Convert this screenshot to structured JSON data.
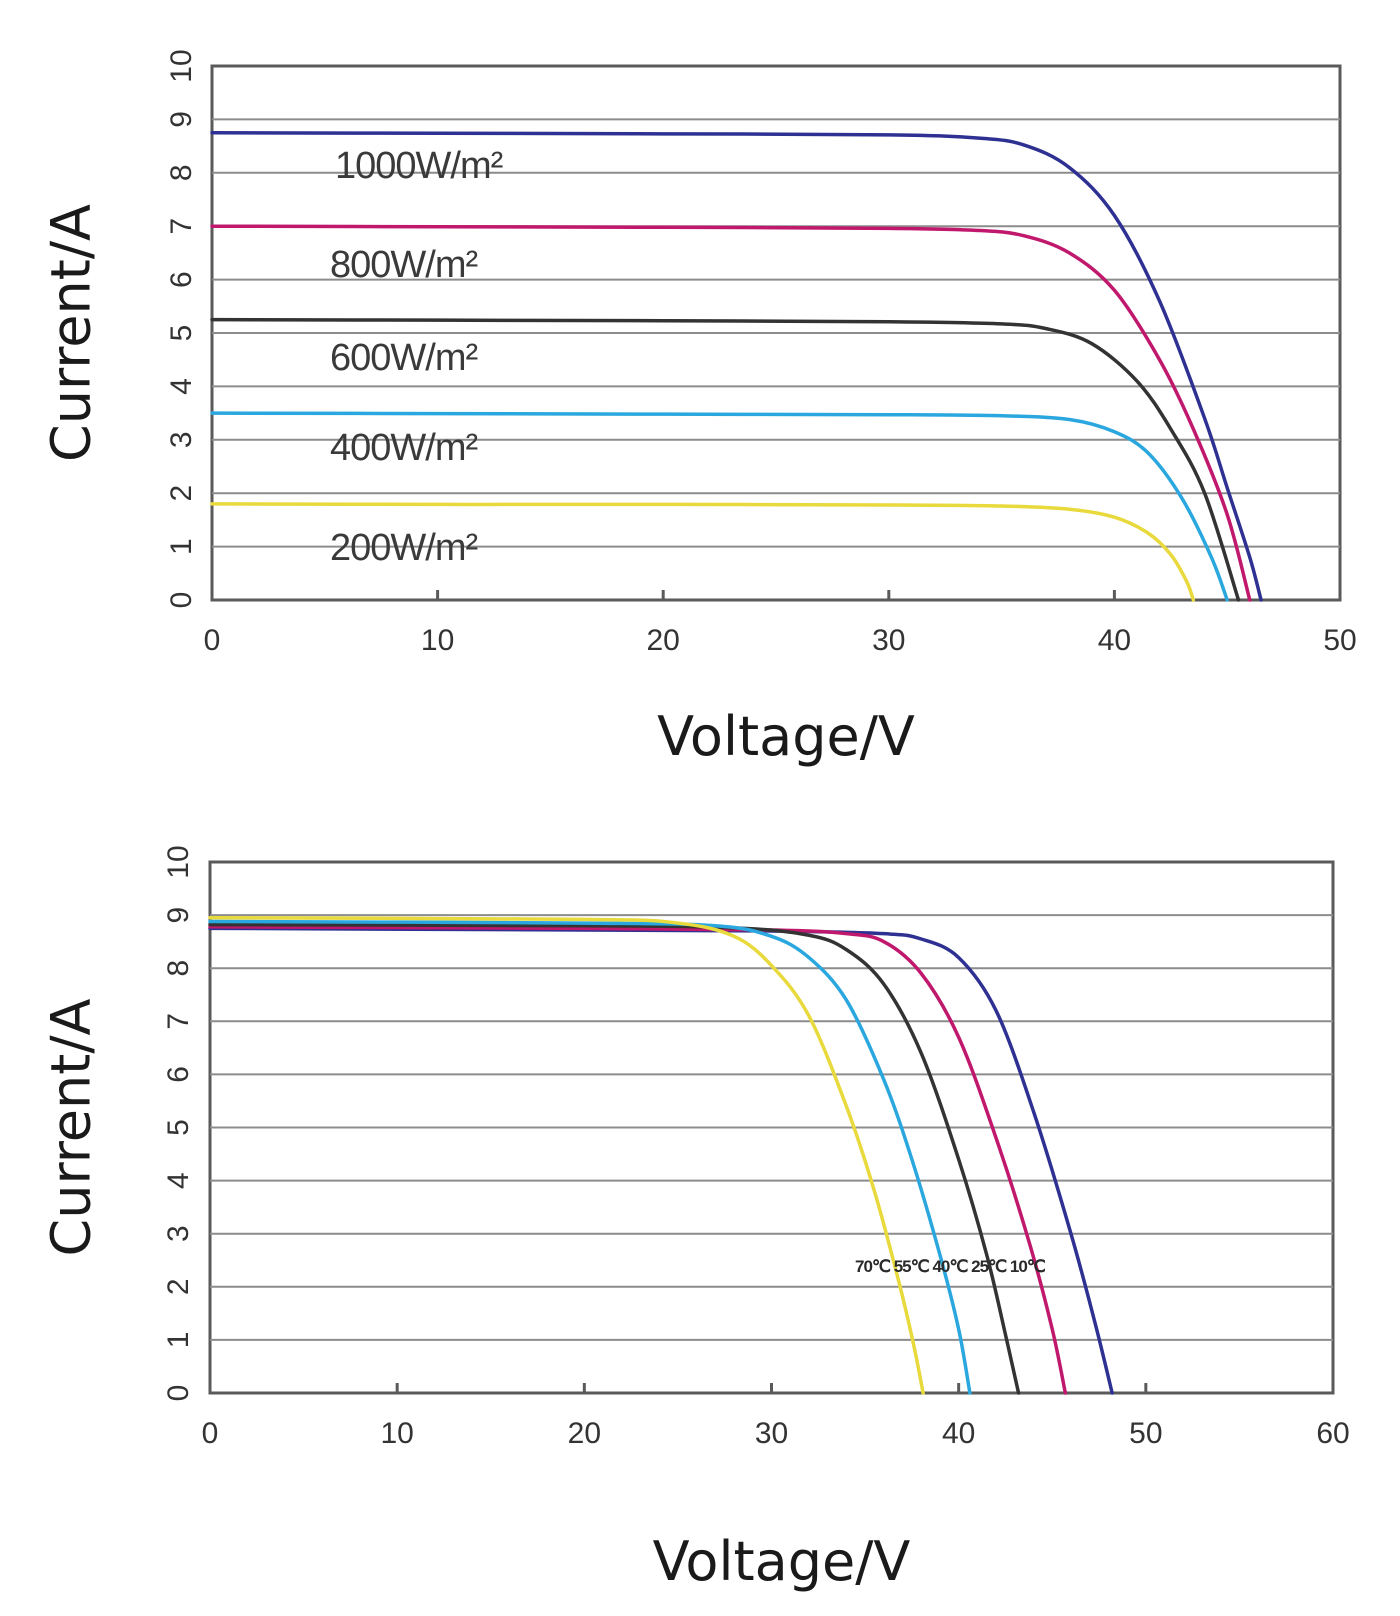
{
  "chart_data": [
    {
      "type": "line",
      "title": "",
      "xlabel": "Voltage/V",
      "ylabel": "Current/A",
      "xlim": [
        0,
        50
      ],
      "ylim": [
        0,
        10
      ],
      "xticks": [
        0,
        10,
        20,
        30,
        40,
        50
      ],
      "yticks": [
        0,
        1,
        2,
        3,
        4,
        5,
        6,
        7,
        8,
        9,
        10
      ],
      "grid": "horizontal",
      "series": [
        {
          "name": "1000W/m²",
          "color": "#2e3192",
          "x": [
            0,
            10,
            20,
            30,
            34,
            36,
            38,
            40,
            42,
            44,
            45,
            46,
            46.5
          ],
          "y": [
            8.75,
            8.74,
            8.73,
            8.71,
            8.65,
            8.52,
            8.1,
            7.2,
            5.6,
            3.4,
            2.1,
            0.8,
            0
          ]
        },
        {
          "name": "800W/m²",
          "color": "#c0186d",
          "x": [
            0,
            10,
            20,
            30,
            34,
            36,
            38,
            40,
            42,
            43.5,
            45,
            46
          ],
          "y": [
            7.0,
            6.99,
            6.98,
            6.96,
            6.92,
            6.82,
            6.5,
            5.8,
            4.5,
            3.2,
            1.6,
            0
          ]
        },
        {
          "name": "600W/m²",
          "color": "#333333",
          "x": [
            0,
            10,
            20,
            30,
            35,
            37,
            39,
            41,
            42.5,
            44,
            45.5
          ],
          "y": [
            5.25,
            5.24,
            5.23,
            5.21,
            5.17,
            5.08,
            4.8,
            4.1,
            3.2,
            2.0,
            0
          ]
        },
        {
          "name": "400W/m²",
          "color": "#2aa7de",
          "x": [
            0,
            10,
            20,
            30,
            35,
            38,
            40,
            41.5,
            43,
            44.3,
            45
          ],
          "y": [
            3.5,
            3.49,
            3.48,
            3.47,
            3.45,
            3.38,
            3.15,
            2.75,
            1.9,
            0.8,
            0
          ]
        },
        {
          "name": "200W/m²",
          "color": "#e8d93c",
          "x": [
            0,
            10,
            20,
            30,
            35,
            38,
            40,
            41.5,
            42.5,
            43.2,
            43.5
          ],
          "y": [
            1.8,
            1.79,
            1.79,
            1.78,
            1.76,
            1.7,
            1.55,
            1.25,
            0.85,
            0.35,
            0
          ]
        }
      ]
    },
    {
      "type": "line",
      "title": "",
      "xlabel": "Voltage/V",
      "ylabel": "Current/A",
      "xlim": [
        0,
        60
      ],
      "ylim": [
        0,
        10
      ],
      "xticks": [
        0,
        10,
        20,
        30,
        40,
        50,
        60
      ],
      "yticks": [
        0,
        1,
        2,
        3,
        4,
        5,
        6,
        7,
        8,
        9,
        10
      ],
      "grid": "horizontal",
      "annotation": "70℃ 55℃ 40℃ 25℃ 10℃",
      "series": [
        {
          "name": "10℃",
          "color": "#2e3192",
          "x": [
            0,
            20,
            30,
            36,
            38,
            40,
            42,
            44,
            46,
            47.3,
            48.2
          ],
          "y": [
            8.75,
            8.72,
            8.7,
            8.65,
            8.55,
            8.2,
            7.2,
            5.3,
            3.0,
            1.3,
            0
          ]
        },
        {
          "name": "25℃",
          "color": "#c0186d",
          "x": [
            0,
            20,
            30,
            34,
            36,
            38,
            40,
            42,
            43.8,
            45,
            45.7
          ],
          "y": [
            8.78,
            8.75,
            8.72,
            8.65,
            8.5,
            7.9,
            6.7,
            4.8,
            2.8,
            1.2,
            0
          ]
        },
        {
          "name": "40℃",
          "color": "#333333",
          "x": [
            0,
            20,
            28,
            32,
            34,
            36,
            38,
            40,
            41.5,
            42.5,
            43.2
          ],
          "y": [
            8.82,
            8.8,
            8.76,
            8.62,
            8.35,
            7.7,
            6.4,
            4.4,
            2.6,
            1.1,
            0
          ]
        },
        {
          "name": "55℃",
          "color": "#2aa7de",
          "x": [
            0,
            20,
            27,
            30,
            32,
            34,
            36,
            37.5,
            39,
            40,
            40.6
          ],
          "y": [
            8.88,
            8.85,
            8.8,
            8.6,
            8.2,
            7.4,
            5.9,
            4.4,
            2.6,
            1.2,
            0
          ]
        },
        {
          "name": "70℃",
          "color": "#e8d93c",
          "x": [
            0,
            20,
            25,
            28,
            30,
            32,
            34,
            35.5,
            36.8,
            37.6,
            38.1
          ],
          "y": [
            8.95,
            8.92,
            8.85,
            8.6,
            8.05,
            7.1,
            5.4,
            3.8,
            2.1,
            0.9,
            0
          ]
        }
      ]
    }
  ]
}
